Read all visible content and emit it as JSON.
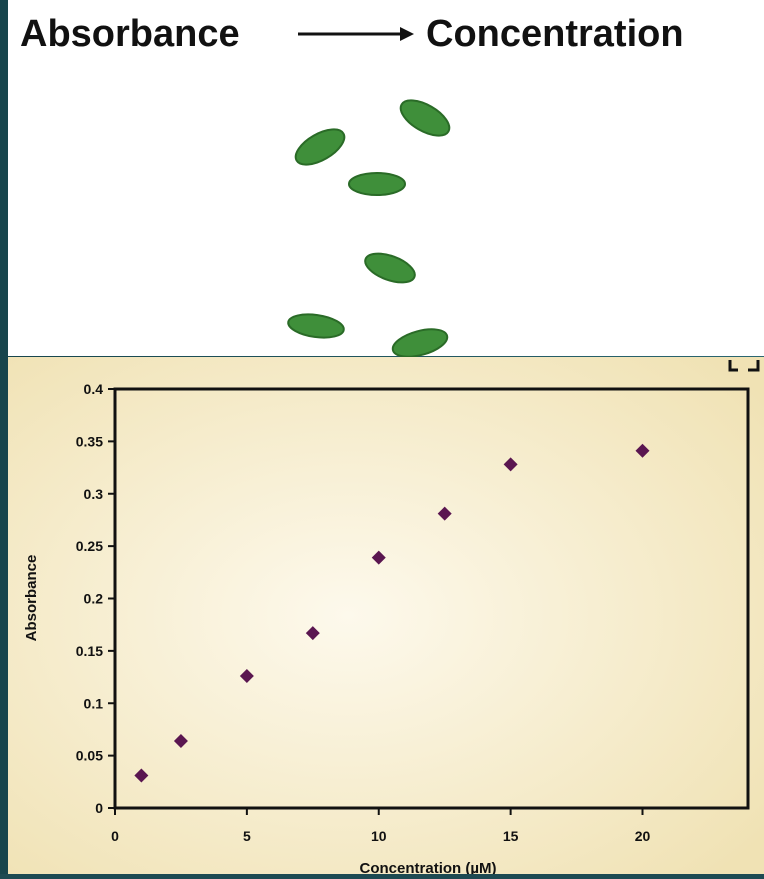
{
  "slide": {
    "title_left": "Absorbance",
    "title_right": "Concentration"
  },
  "chart_data": {
    "type": "scatter",
    "x_label": "Concentration (µM)",
    "y_label": "Absorbance",
    "x": [
      1,
      2.5,
      5,
      7.5,
      10,
      12.5,
      15,
      20
    ],
    "series": [
      {
        "name": "Absorbance",
        "color": "#5a1650",
        "values": [
          0.031,
          0.064,
          0.126,
          0.167,
          0.239,
          0.281,
          0.328,
          0.341
        ]
      }
    ],
    "xlim": [
      0,
      24
    ],
    "xticks": [
      0,
      5,
      10,
      15,
      20
    ],
    "ylim": [
      0,
      0.4
    ],
    "yticks": [
      0,
      0.05,
      0.1,
      0.15,
      0.2,
      0.25,
      0.3,
      0.35,
      0.4
    ],
    "grid": false
  }
}
